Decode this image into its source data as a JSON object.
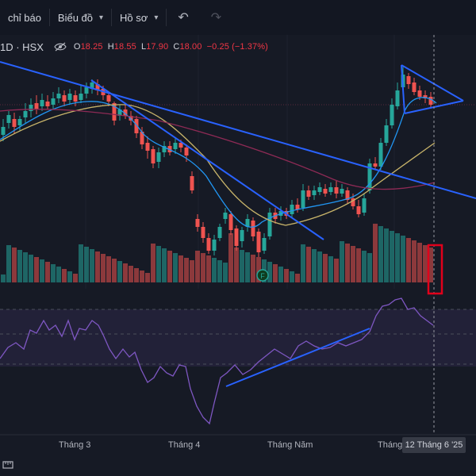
{
  "toolbar": {
    "indicators_label": "chỉ báo",
    "timeframe_label": "Biểu đồ",
    "profile_label": "Hồ sơ",
    "undo_icon": "undo-icon",
    "redo_icon": "redo-icon"
  },
  "legend": {
    "symbol": "1D · HSX",
    "open_key": "O",
    "open": "18.25",
    "high_key": "H",
    "high": "18.55",
    "low_key": "L",
    "low": "17.90",
    "close_key": "C",
    "close": "18.00",
    "change": "−0.25 (−1.37%)"
  },
  "xaxis": {
    "months": [
      "Tháng 3",
      "Tháng 4",
      "Tháng Năm",
      "Tháng"
    ],
    "crosshair_date": "12 Tháng 6 '25"
  },
  "markers": {
    "earnings_letter": "F"
  },
  "colors": {
    "up": "#26a69a",
    "down": "#ef5350",
    "trendline": "#2962ff",
    "ma_fast": "#2196f3",
    "ma_mid": "#c8b46a",
    "ma_slow": "#8e2a55",
    "rsi": "#7e57c2",
    "highlight_box": "#e0001b"
  },
  "icons": [
    "eye-off-icon",
    "undo-icon",
    "redo-icon",
    "chevron-down-icon",
    "ruler-icon"
  ]
}
